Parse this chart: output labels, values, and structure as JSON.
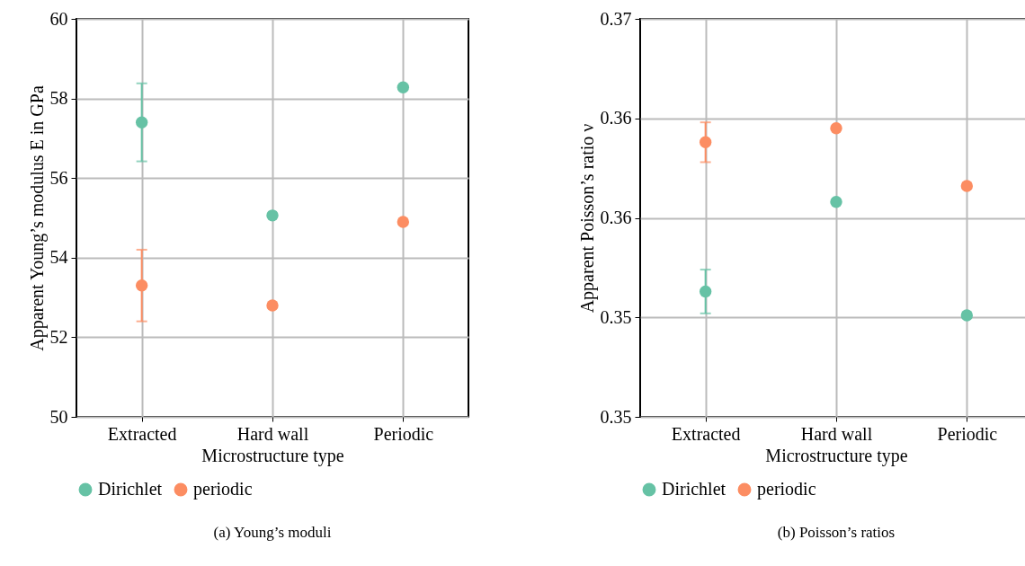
{
  "chart_data": [
    {
      "type": "scatter",
      "title": "(a) Young’s moduli",
      "xlabel": "Microstructure type",
      "ylabel": "Apparent Young’s modulus E in GPa",
      "categories": [
        "Extracted",
        "Hard wall",
        "Periodic"
      ],
      "series": [
        {
          "name": "Dirichlet",
          "color": "#66c2a5",
          "values": [
            57.4,
            55.06,
            58.28
          ],
          "errors": [
            0.98,
            null,
            null
          ]
        },
        {
          "name": "periodic",
          "color": "#fc8d62",
          "values": [
            53.3,
            52.8,
            54.9
          ],
          "errors": [
            0.9,
            null,
            null
          ]
        }
      ],
      "ylim": [
        50,
        60
      ],
      "yticks": [
        50,
        52,
        54,
        56,
        58,
        60
      ],
      "grid": true,
      "legend": "bottom",
      "marker": "circle"
    },
    {
      "type": "scatter",
      "title": "(b) Poisson’s ratios",
      "xlabel": "Microstructure type",
      "ylabel": "Apparent Poisson’s ratio ν",
      "categories": [
        "Extracted",
        "Hard wall",
        "Periodic"
      ],
      "series": [
        {
          "name": "Dirichlet",
          "color": "#66c2a5",
          "values": [
            0.3563,
            0.3608,
            0.3551
          ],
          "errors": [
            0.0011,
            null,
            null
          ]
        },
        {
          "name": "periodic",
          "color": "#fc8d62",
          "values": [
            0.3638,
            0.3645,
            0.3616
          ],
          "errors": [
            0.001,
            null,
            null
          ]
        }
      ],
      "ylim": [
        0.35,
        0.37
      ],
      "yticks": [
        0.35,
        {
          "value": 0.355,
          "label": "0.35"
        },
        0.36,
        {
          "value": 0.365,
          "label": "0.36"
        },
        0.37
      ],
      "grid": true,
      "legend": "bottom",
      "marker": "circle"
    }
  ]
}
